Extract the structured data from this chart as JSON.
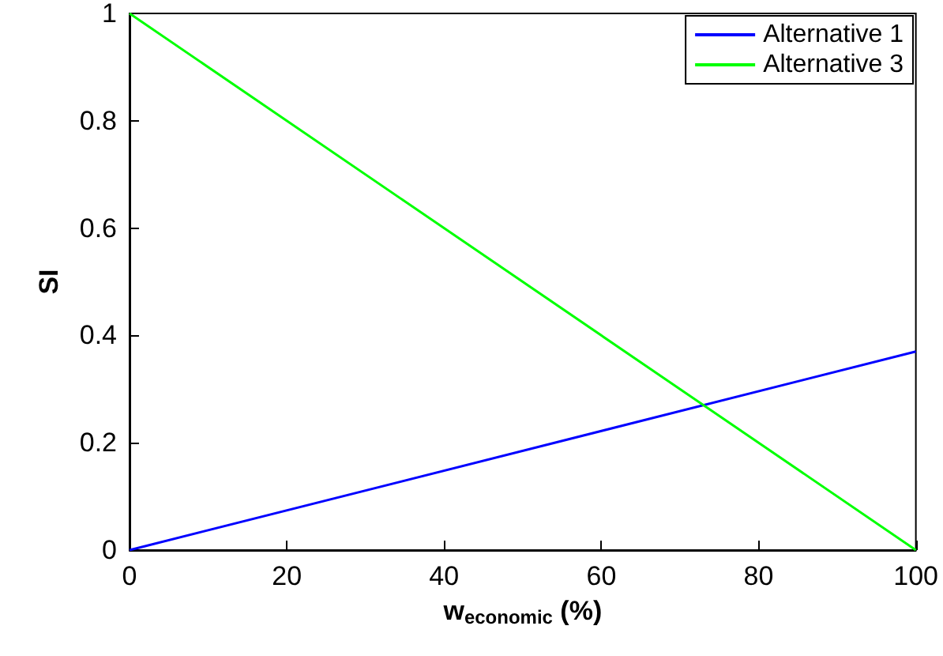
{
  "chart_data": {
    "type": "line",
    "xlabel": "w$_{economic}$ (%)",
    "ylabel": "SI",
    "x": [
      0,
      100
    ],
    "series": [
      {
        "name": "Alternative 1",
        "color": "#0000ff",
        "values": [
          0,
          0.37
        ]
      },
      {
        "name": "Alternative 3",
        "color": "#00ff00",
        "values": [
          1,
          0
        ]
      }
    ],
    "xlim": [
      0,
      100
    ],
    "xticks": [
      0,
      20,
      40,
      60,
      80,
      100
    ],
    "ylim": [
      0,
      1
    ],
    "yticks": [
      0,
      0.2,
      0.4,
      0.6,
      0.8,
      1
    ],
    "grid": false,
    "legend": "top right",
    "marker": "none",
    "line_style": "solid"
  }
}
